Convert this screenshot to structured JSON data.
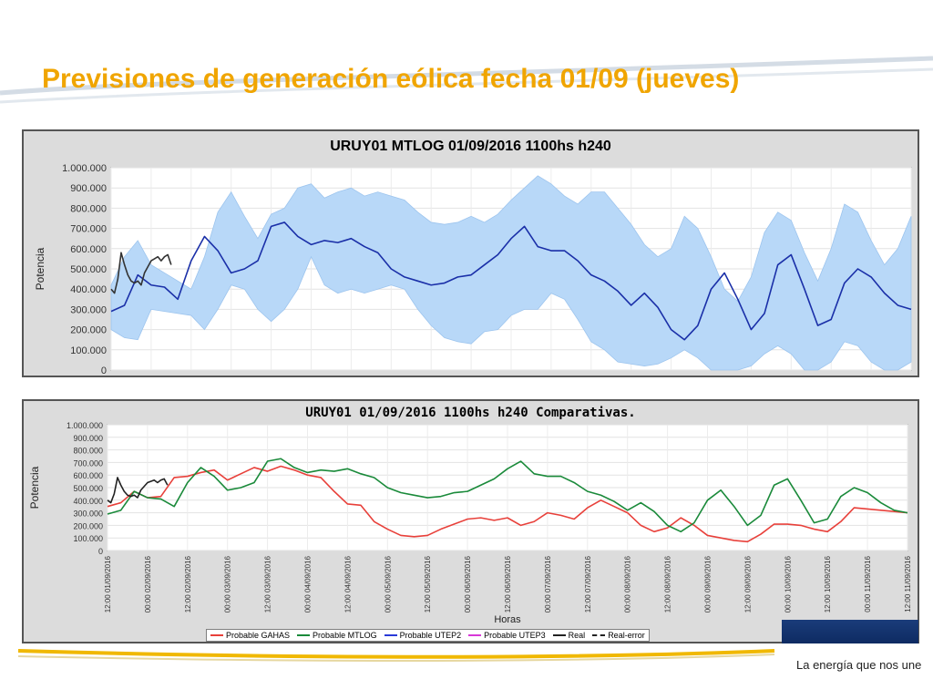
{
  "slide": {
    "title": "Previsiones de generación eólica fecha 01/09 (jueves)",
    "tagline": "La energía que nos une",
    "title_color": "#f0a500"
  },
  "chart_data": [
    {
      "type": "line",
      "title": "URUY01  MTLOG  01/09/2016  1100hs   h240",
      "ylabel": "Potencia",
      "xlabel": "",
      "ylim": [
        0,
        1000000
      ],
      "yticks": [
        "0",
        "100.000",
        "200.000",
        "300.000",
        "400.000",
        "500.000",
        "600.000",
        "700.000",
        "800.000",
        "900.000",
        "1.000.000"
      ],
      "grid": true,
      "x_hours": [
        0,
        240
      ],
      "series": [
        {
          "role": "band",
          "color": "#b8d8f8",
          "x": [
            0,
            4,
            8,
            12,
            16,
            20,
            24,
            28,
            32,
            36,
            40,
            44,
            48,
            52,
            56,
            60,
            64,
            68,
            72,
            76,
            80,
            84,
            88,
            92,
            96,
            100,
            104,
            108,
            112,
            116,
            120,
            124,
            128,
            132,
            136,
            140,
            144,
            148,
            152,
            156,
            160,
            164,
            168,
            172,
            176,
            180,
            184,
            188,
            192,
            196,
            200,
            204,
            208,
            212,
            216,
            220,
            224,
            228,
            232,
            236,
            240
          ],
          "upper": [
            420,
            560,
            640,
            520,
            480,
            440,
            400,
            560,
            780,
            880,
            760,
            650,
            770,
            800,
            900,
            920,
            850,
            880,
            900,
            860,
            880,
            860,
            840,
            780,
            730,
            720,
            730,
            760,
            730,
            770,
            840,
            900,
            960,
            920,
            860,
            820,
            880,
            880,
            800,
            720,
            620,
            560,
            600,
            760,
            700,
            560,
            400,
            340,
            460,
            680,
            780,
            740,
            580,
            440,
            600,
            820,
            780,
            640,
            520,
            600,
            760
          ],
          "lower": [
            200,
            160,
            150,
            300,
            290,
            280,
            270,
            200,
            300,
            420,
            400,
            300,
            240,
            300,
            400,
            560,
            420,
            380,
            400,
            380,
            400,
            420,
            400,
            300,
            220,
            160,
            140,
            130,
            190,
            200,
            270,
            300,
            300,
            380,
            350,
            250,
            140,
            100,
            40,
            30,
            20,
            30,
            60,
            100,
            60,
            0,
            0,
            0,
            20,
            80,
            120,
            80,
            0,
            0,
            40,
            140,
            120,
            40,
            0,
            0,
            40
          ]
        },
        {
          "name": "MTLOG",
          "color": "#1a2fa8",
          "x": [
            0,
            4,
            8,
            12,
            16,
            20,
            24,
            28,
            32,
            36,
            40,
            44,
            48,
            52,
            56,
            60,
            64,
            68,
            72,
            76,
            80,
            84,
            88,
            92,
            96,
            100,
            104,
            108,
            112,
            116,
            120,
            124,
            128,
            132,
            136,
            140,
            144,
            148,
            152,
            156,
            160,
            164,
            168,
            172,
            176,
            180,
            184,
            188,
            192,
            196,
            200,
            204,
            208,
            212,
            216,
            220,
            224,
            228,
            232,
            236,
            240
          ],
          "values": [
            290,
            320,
            470,
            420,
            410,
            350,
            540,
            660,
            590,
            480,
            500,
            540,
            710,
            730,
            660,
            620,
            640,
            630,
            650,
            610,
            580,
            500,
            460,
            440,
            420,
            430,
            460,
            470,
            520,
            570,
            650,
            710,
            610,
            590,
            590,
            540,
            470,
            440,
            390,
            320,
            380,
            310,
            200,
            150,
            220,
            400,
            480,
            350,
            200,
            280,
            520,
            570,
            400,
            220,
            250,
            430,
            500,
            460,
            380,
            320,
            300
          ]
        },
        {
          "name": "Real",
          "color": "#333333",
          "x": [
            0,
            1,
            2,
            3,
            4,
            5,
            6,
            7,
            8,
            9,
            10,
            11,
            12,
            13,
            14,
            15,
            16,
            17,
            18
          ],
          "values": [
            400,
            380,
            450,
            580,
            520,
            470,
            440,
            430,
            440,
            420,
            480,
            510,
            540,
            550,
            560,
            540,
            560,
            570,
            520
          ]
        }
      ]
    },
    {
      "type": "line",
      "title": "URUY01  01/09/2016  1100hs  h240  Comparativas.",
      "ylabel": "Potencia",
      "xlabel": "Horas",
      "ylim": [
        0,
        1000000
      ],
      "yticks": [
        "0",
        "100.000",
        "200.000",
        "300.000",
        "400.000",
        "500.000",
        "600.000",
        "700.000",
        "800.000",
        "900.000",
        "1.000.000"
      ],
      "grid": true,
      "x_hours": [
        0,
        240
      ],
      "xticks": [
        "12:00 01/09/2016",
        "00:00 02/09/2016",
        "12:00 02/09/2016",
        "00:00 03/09/2016",
        "12:00 03/09/2016",
        "00:00 04/09/2016",
        "12:00 04/09/2016",
        "00:00 05/09/2016",
        "12:00 05/09/2016",
        "00:00 06/09/2016",
        "12:00 06/09/2016",
        "00:00 07/09/2016",
        "12:00 07/09/2016",
        "00:00 08/09/2016",
        "12:00 08/09/2016",
        "00:00 09/09/2016",
        "12:00 09/09/2016",
        "00:00 10/09/2016",
        "12:00 10/09/2016",
        "00:00 11/09/2016",
        "12:00 11/09/2016"
      ],
      "legend_placement": "bottom",
      "series": [
        {
          "name": "Probable GAHAS",
          "color": "#e8403a",
          "x": [
            0,
            4,
            8,
            12,
            16,
            20,
            24,
            28,
            32,
            36,
            40,
            44,
            48,
            52,
            56,
            60,
            64,
            68,
            72,
            76,
            80,
            84,
            88,
            92,
            96,
            100,
            104,
            108,
            112,
            116,
            120,
            124,
            128,
            132,
            136,
            140,
            144,
            148,
            152,
            156,
            160,
            164,
            168,
            172,
            176,
            180,
            184,
            188,
            192,
            196,
            200,
            204,
            208,
            212,
            216,
            220,
            224,
            228,
            232,
            236,
            240
          ],
          "values": [
            350,
            380,
            470,
            420,
            430,
            580,
            590,
            620,
            640,
            560,
            610,
            660,
            630,
            670,
            640,
            600,
            580,
            470,
            370,
            360,
            230,
            170,
            120,
            110,
            120,
            170,
            210,
            250,
            260,
            240,
            260,
            200,
            230,
            300,
            280,
            250,
            340,
            400,
            350,
            300,
            200,
            150,
            180,
            260,
            200,
            120,
            100,
            80,
            70,
            130,
            210,
            210,
            200,
            170,
            150,
            230,
            340,
            330,
            320,
            310,
            300
          ]
        },
        {
          "name": "Probable MTLOG",
          "color": "#1a8a3a",
          "x": [
            0,
            4,
            8,
            12,
            16,
            20,
            24,
            28,
            32,
            36,
            40,
            44,
            48,
            52,
            56,
            60,
            64,
            68,
            72,
            76,
            80,
            84,
            88,
            92,
            96,
            100,
            104,
            108,
            112,
            116,
            120,
            124,
            128,
            132,
            136,
            140,
            144,
            148,
            152,
            156,
            160,
            164,
            168,
            172,
            176,
            180,
            184,
            188,
            192,
            196,
            200,
            204,
            208,
            212,
            216,
            220,
            224,
            228,
            232,
            236,
            240
          ],
          "values": [
            290,
            320,
            470,
            420,
            410,
            350,
            540,
            660,
            590,
            480,
            500,
            540,
            710,
            730,
            660,
            620,
            640,
            630,
            650,
            610,
            580,
            500,
            460,
            440,
            420,
            430,
            460,
            470,
            520,
            570,
            650,
            710,
            610,
            590,
            590,
            540,
            470,
            440,
            390,
            320,
            380,
            310,
            200,
            150,
            220,
            400,
            480,
            350,
            200,
            280,
            520,
            570,
            400,
            220,
            250,
            430,
            500,
            460,
            380,
            320,
            300
          ]
        },
        {
          "name": "Probable UTEP2",
          "color": "#2a3ad8",
          "x": [],
          "values": []
        },
        {
          "name": "Probable UTEP3",
          "color": "#d838d8",
          "x": [],
          "values": []
        },
        {
          "name": "Real",
          "color": "#222222",
          "x": [
            0,
            1,
            2,
            3,
            4,
            5,
            6,
            7,
            8,
            9,
            10,
            11,
            12,
            13,
            14,
            15,
            16,
            17,
            18
          ],
          "values": [
            400,
            380,
            450,
            580,
            520,
            470,
            440,
            430,
            440,
            420,
            480,
            510,
            540,
            550,
            560,
            540,
            560,
            570,
            520
          ]
        },
        {
          "name": "Real-error",
          "color": "#222222",
          "dashed": true,
          "x": [],
          "values": []
        }
      ]
    }
  ]
}
